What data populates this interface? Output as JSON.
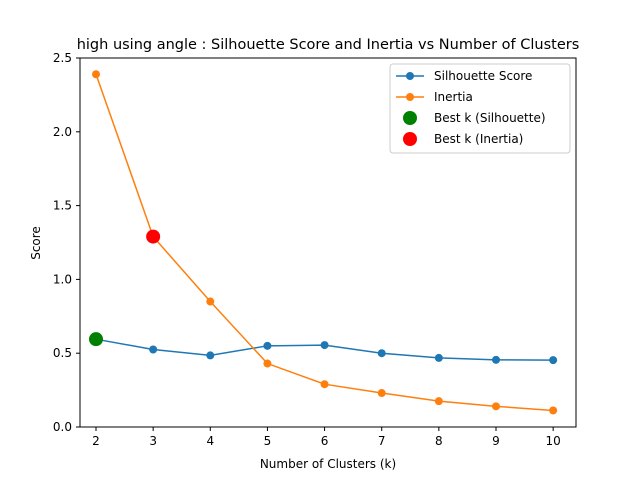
{
  "chart_data": {
    "type": "line",
    "title": "high using angle : Silhouette Score and Inertia vs Number of Clusters",
    "xlabel": "Number of Clusters (k)",
    "ylabel": "Score",
    "x": [
      2,
      3,
      4,
      5,
      6,
      7,
      8,
      9,
      10
    ],
    "xticks": [
      "2",
      "3",
      "4",
      "5",
      "6",
      "7",
      "8",
      "9",
      "10"
    ],
    "xlim": [
      1.72,
      10.4
    ],
    "ylim": [
      0,
      2.5
    ],
    "yticks": [
      "0.0",
      "0.5",
      "1.0",
      "1.5",
      "2.0",
      "2.5"
    ],
    "grid": false,
    "legend_position": "top-right",
    "series": [
      {
        "name": "Silhouette Score",
        "color": "#1f77b4",
        "marker": "circle",
        "values": [
          0.595,
          0.525,
          0.485,
          0.55,
          0.555,
          0.5,
          0.468,
          0.455,
          0.453
        ]
      },
      {
        "name": "Inertia",
        "color": "#ff7f0e",
        "marker": "circle",
        "values": [
          2.39,
          1.29,
          0.85,
          0.43,
          0.29,
          0.23,
          0.175,
          0.14,
          0.112
        ]
      }
    ],
    "highlights": [
      {
        "name": "Best k (Silhouette)",
        "color": "#008000",
        "x": 2,
        "y": 0.595
      },
      {
        "name": "Best k (Inertia)",
        "color": "#ff0000",
        "x": 3,
        "y": 1.29
      }
    ]
  }
}
